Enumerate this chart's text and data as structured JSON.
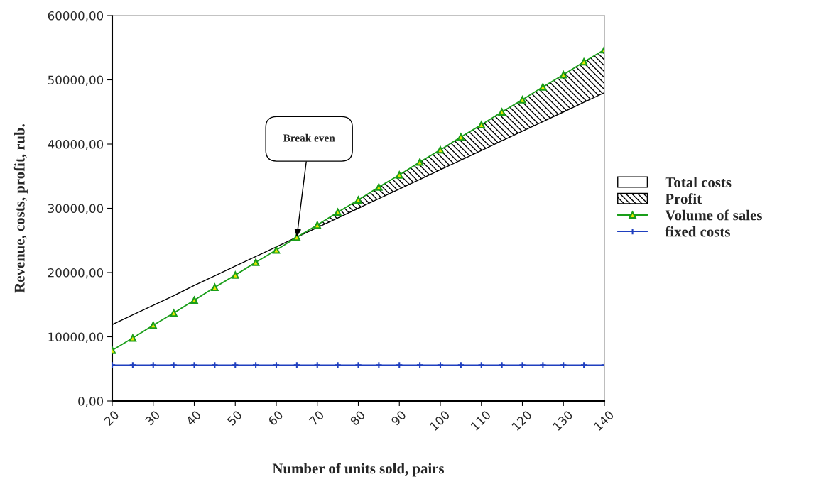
{
  "chart_data": {
    "type": "area",
    "stacked": true,
    "xlabel": "Number of units sold, pairs",
    "ylabel": "Revenue, costs, profit, rub.",
    "x": [
      20,
      25,
      30,
      35,
      40,
      45,
      50,
      55,
      60,
      65,
      70,
      75,
      80,
      85,
      90,
      95,
      100,
      105,
      110,
      115,
      120,
      125,
      130,
      135,
      140
    ],
    "series": [
      {
        "name": "Total costs",
        "color": "#ffffff",
        "values": [
          11900,
          13400,
          14900,
          16400,
          18000,
          19500,
          21000,
          22500,
          24000,
          25500,
          27000,
          28500,
          30000,
          31500,
          33000,
          34500,
          36000,
          37500,
          39000,
          40500,
          42000,
          43500,
          45000,
          46500,
          48000
        ]
      },
      {
        "name": "Profit",
        "color": "#000000",
        "values": [
          0,
          0,
          0,
          0,
          0,
          0,
          0,
          0,
          0,
          0,
          400,
          900,
          1300,
          1800,
          2200,
          2700,
          3100,
          3600,
          4000,
          4500,
          4900,
          5400,
          5800,
          6300,
          6700
        ]
      },
      {
        "name": "Volume of sales",
        "type": "line",
        "color": "#1a9e1a",
        "marker": "triangle",
        "values": [
          7900,
          9800,
          11800,
          13700,
          15700,
          17700,
          19600,
          21600,
          23500,
          25500,
          27400,
          29400,
          31300,
          33300,
          35200,
          37200,
          39100,
          41100,
          43000,
          45000,
          46900,
          48900,
          50800,
          52800,
          54700
        ]
      },
      {
        "name": "fixed costs",
        "type": "line",
        "color": "#1f3fbf",
        "marker": "cross",
        "values": [
          5600,
          5600,
          5600,
          5600,
          5600,
          5600,
          5600,
          5600,
          5600,
          5600,
          5600,
          5600,
          5600,
          5600,
          5600,
          5600,
          5600,
          5600,
          5600,
          5600,
          5600,
          5600,
          5600,
          5600,
          5600
        ]
      }
    ],
    "annotations": [
      "Break even"
    ],
    "xlim": [
      20,
      140
    ],
    "xticks": [
      20,
      30,
      40,
      50,
      60,
      70,
      80,
      90,
      100,
      110,
      120,
      130,
      140
    ],
    "ylim": [
      0,
      60000
    ],
    "yticks": [
      {
        "value": 0,
        "label": "0,00"
      },
      {
        "value": 10000,
        "label": "10000,00"
      },
      {
        "value": 20000,
        "label": "20000,00"
      },
      {
        "value": 30000,
        "label": "30000,00"
      },
      {
        "value": 40000,
        "label": "40000,00"
      },
      {
        "value": 50000,
        "label": "50000,00"
      },
      {
        "value": 60000,
        "label": "60000,00"
      }
    ],
    "grid": false,
    "legend": "right"
  }
}
